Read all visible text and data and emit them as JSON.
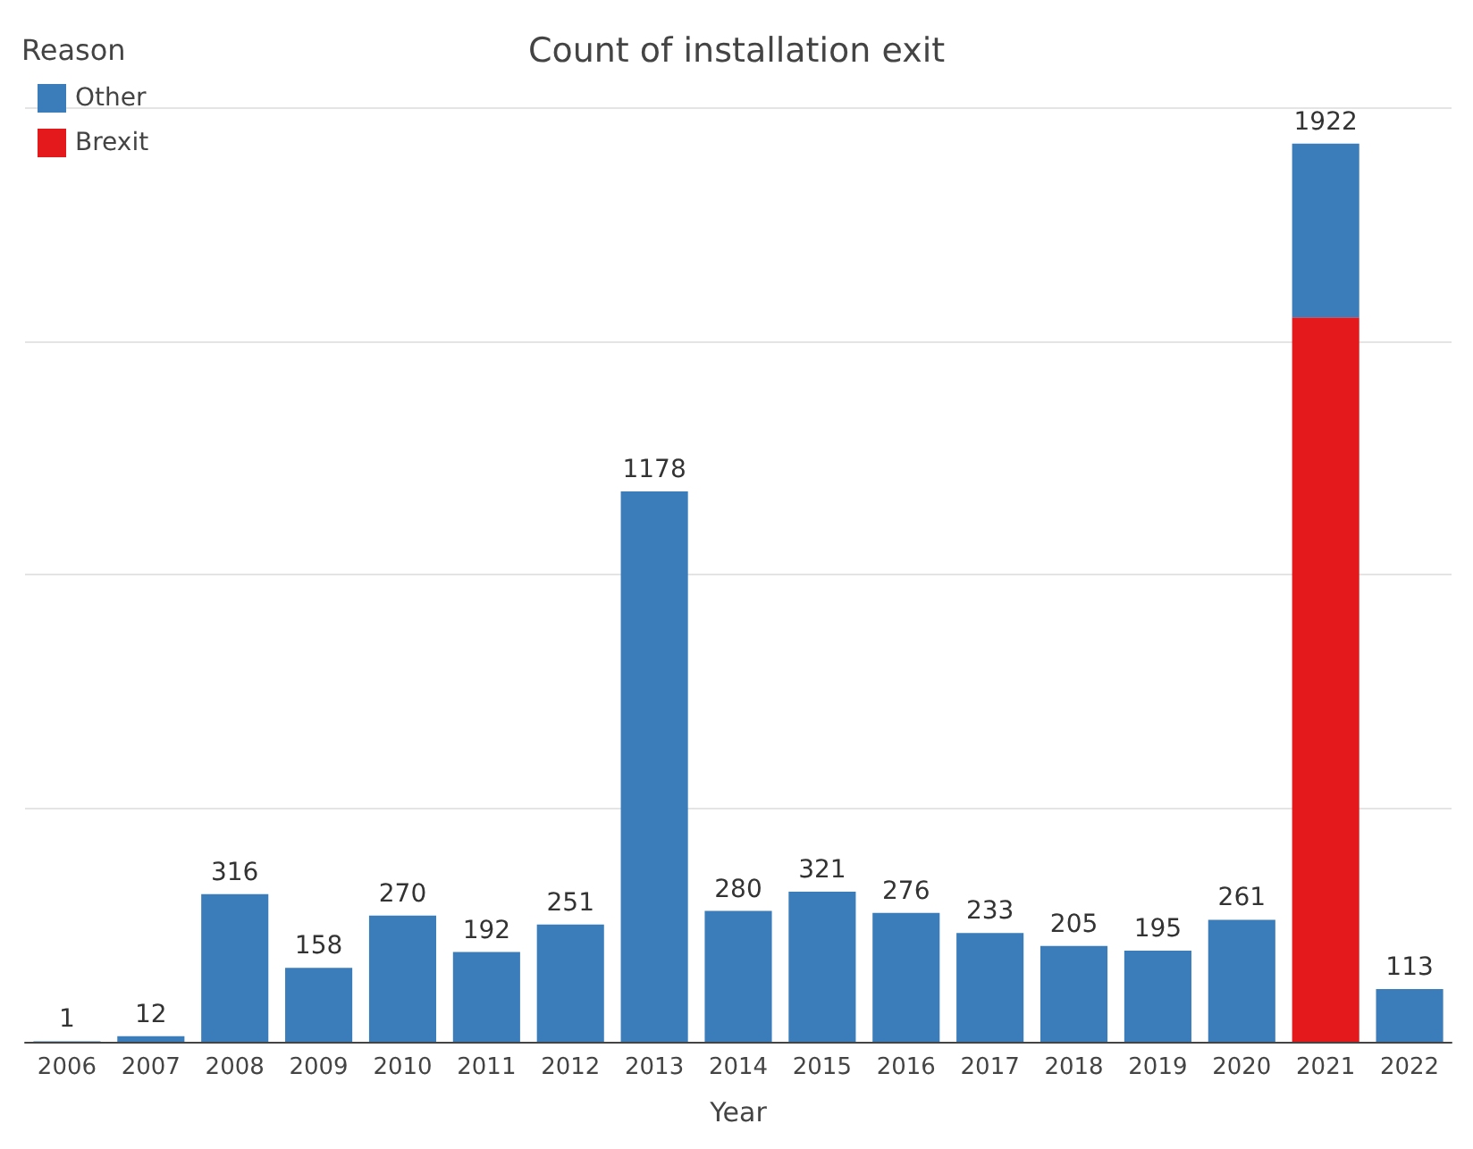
{
  "chart_data": {
    "type": "bar",
    "title": "Count of installation exit",
    "xlabel": "Year",
    "legend_title": "Reason",
    "stacked": true,
    "categories": [
      "2006",
      "2007",
      "2008",
      "2009",
      "2010",
      "2011",
      "2012",
      "2013",
      "2014",
      "2015",
      "2016",
      "2017",
      "2018",
      "2019",
      "2020",
      "2021",
      "2022"
    ],
    "series": [
      {
        "name": "Brexit",
        "color": "#e3191c",
        "values": [
          null,
          null,
          null,
          null,
          null,
          null,
          null,
          null,
          null,
          null,
          null,
          null,
          null,
          null,
          null,
          1550,
          null
        ]
      },
      {
        "name": "Other",
        "color": "#3a7dba",
        "values": [
          1,
          12,
          316,
          158,
          270,
          192,
          251,
          1178,
          280,
          321,
          276,
          233,
          205,
          195,
          261,
          372,
          113
        ],
        "value_labels": [
          "1",
          "12",
          "316",
          "158",
          "270",
          "192",
          "251",
          "1178",
          "280",
          "321",
          "276",
          "233",
          "205",
          "195",
          "261",
          null,
          "113"
        ]
      }
    ],
    "totals": [
      null,
      null,
      null,
      null,
      null,
      null,
      null,
      null,
      null,
      null,
      null,
      null,
      null,
      null,
      null,
      "1922",
      null
    ],
    "grid": "y",
    "legend": "top left",
    "tick_labels": "x"
  }
}
